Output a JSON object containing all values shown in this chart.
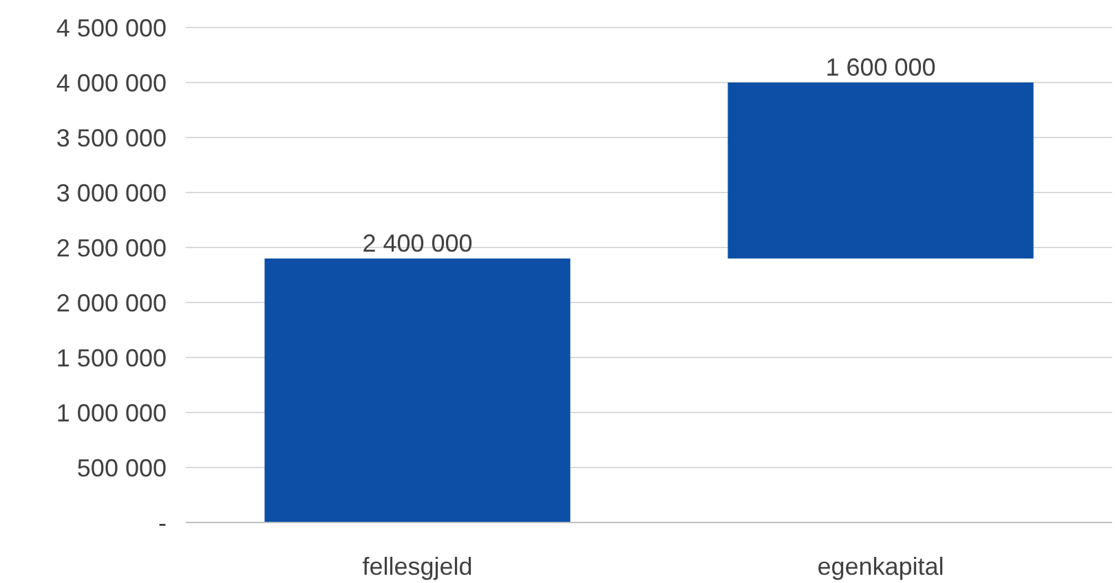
{
  "chart_data": {
    "type": "bar",
    "categories": [
      "fellesgjeld",
      "egenkapital"
    ],
    "values": [
      2400000,
      1600000
    ],
    "base": [
      0,
      2400000
    ],
    "color": "#0d4fa6",
    "value_labels": [
      "2 400 000",
      "1 600 000"
    ],
    "ylim": [
      0,
      4500000
    ],
    "yticks": [
      {
        "value": 0,
        "label": "-"
      },
      {
        "value": 500000,
        "label": "500 000"
      },
      {
        "value": 1000000,
        "label": "1 000 000"
      },
      {
        "value": 1500000,
        "label": "1 500 000"
      },
      {
        "value": 2000000,
        "label": "2 000 000"
      },
      {
        "value": 2500000,
        "label": "2 500 000"
      },
      {
        "value": 3000000,
        "label": "3 000 000"
      },
      {
        "value": 3500000,
        "label": "3 500 000"
      },
      {
        "value": 4000000,
        "label": "4 000 000"
      },
      {
        "value": 4500000,
        "label": "4 500 000"
      }
    ],
    "grid": "y"
  }
}
